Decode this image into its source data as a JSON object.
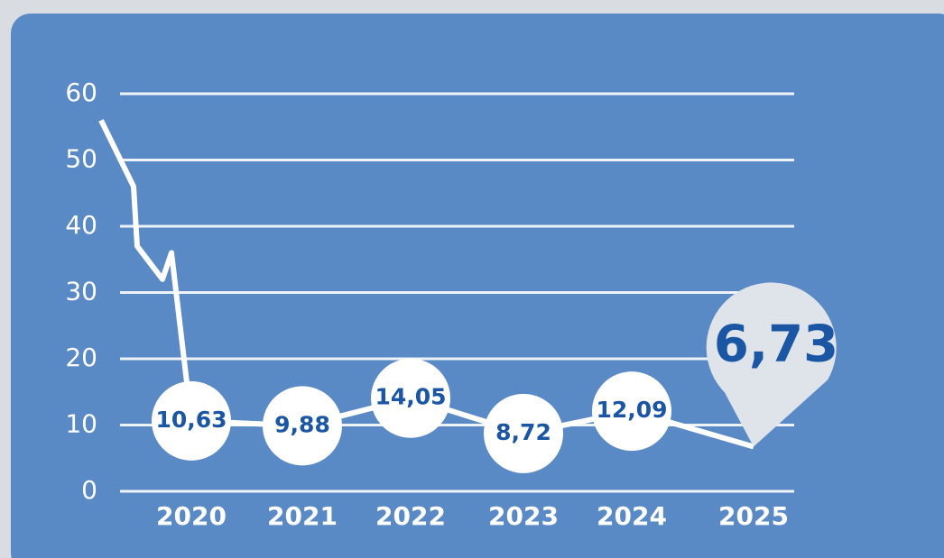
{
  "chart_data": {
    "type": "line",
    "categories": [
      null,
      null,
      null,
      null,
      null,
      "2020",
      "2021",
      "2022",
      "2023",
      "2024",
      "2025"
    ],
    "values": [
      56,
      46,
      37,
      32,
      36,
      10.63,
      9.88,
      14.05,
      8.72,
      12.09,
      6.73
    ],
    "value_labels": [
      null,
      null,
      null,
      null,
      null,
      "10,63",
      "9,88",
      "14,05",
      "8,72",
      "12,09",
      "6,73"
    ],
    "color": "#ffffff",
    "ylim": [
      0,
      60
    ],
    "yticks": [
      0,
      10,
      20,
      30,
      40,
      50,
      60
    ],
    "grid": true
  }
}
